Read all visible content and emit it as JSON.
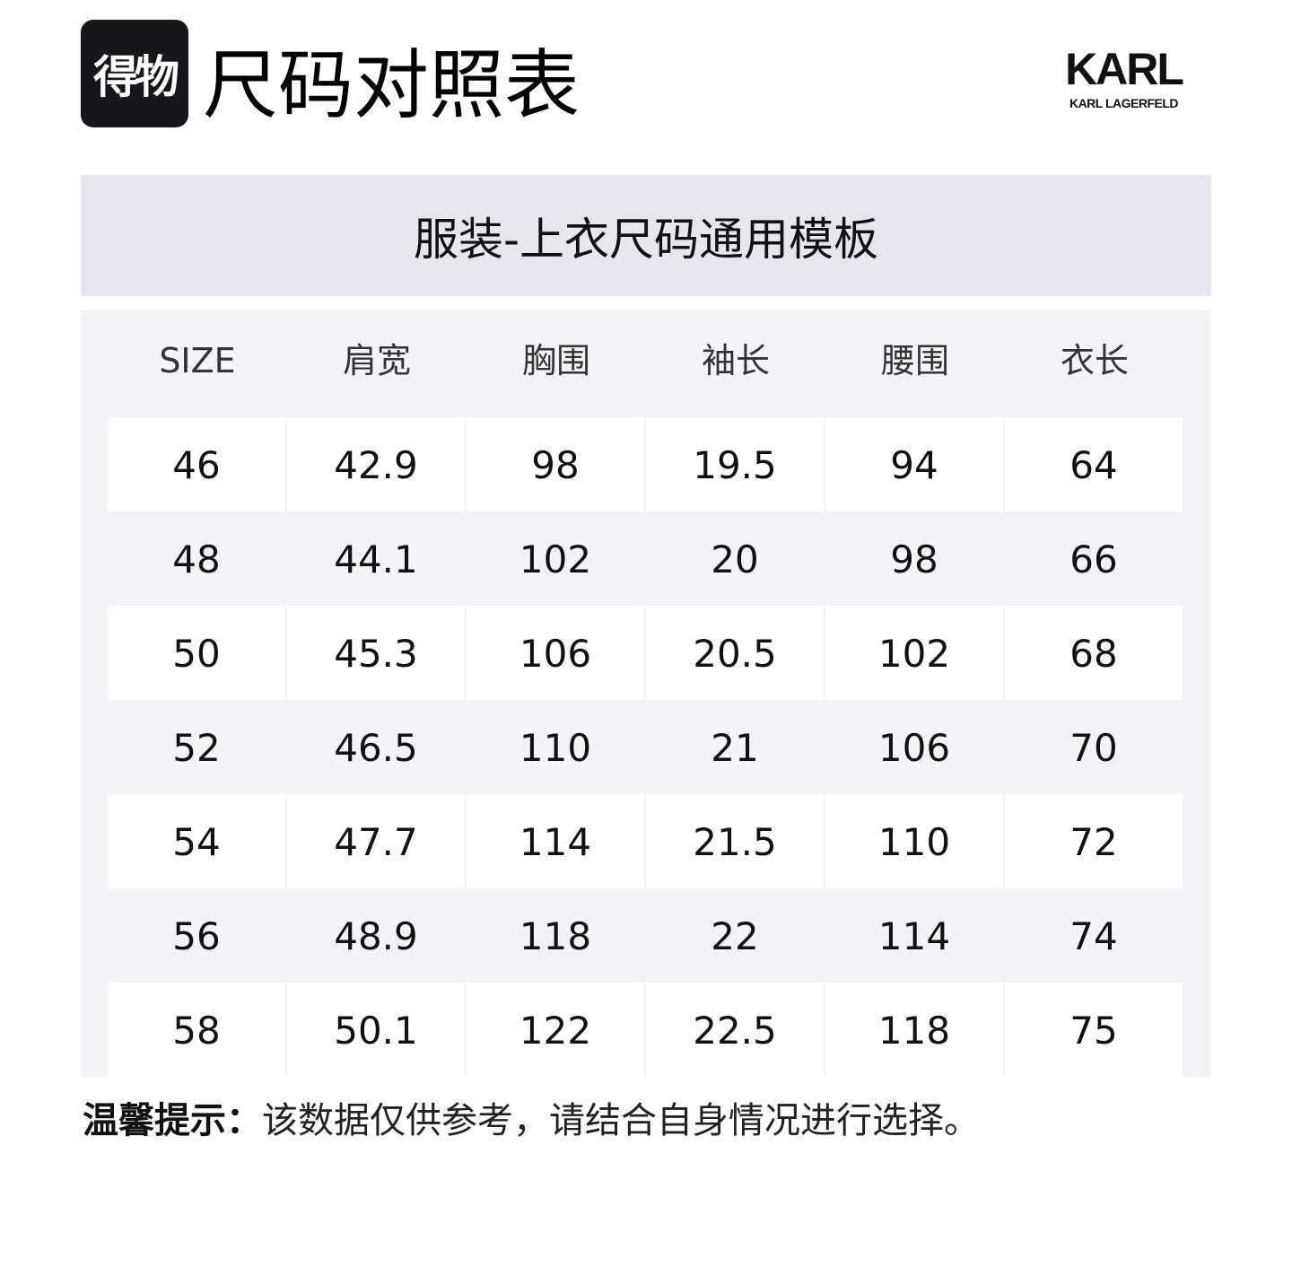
{
  "header": {
    "logo_text": "得物",
    "title": "尺码对照表",
    "brand_logo": "KARL",
    "brand_sub": "KARL LAGERFELD"
  },
  "band_title": "服装-上衣尺码通用模板",
  "table": {
    "columns": [
      "SIZE",
      "肩宽",
      "胸围",
      "袖长",
      "腰围",
      "衣长"
    ],
    "rows": [
      [
        "46",
        "42.9",
        "98",
        "19.5",
        "94",
        "64"
      ],
      [
        "48",
        "44.1",
        "102",
        "20",
        "98",
        "66"
      ],
      [
        "50",
        "45.3",
        "106",
        "20.5",
        "102",
        "68"
      ],
      [
        "52",
        "46.5",
        "110",
        "21",
        "106",
        "70"
      ],
      [
        "54",
        "47.7",
        "114",
        "21.5",
        "110",
        "72"
      ],
      [
        "56",
        "48.9",
        "118",
        "22",
        "114",
        "74"
      ],
      [
        "58",
        "50.1",
        "122",
        "22.5",
        "118",
        "75"
      ]
    ]
  },
  "tip": {
    "label": "温馨提示：",
    "text": "该数据仅供参考，请结合自身情况进行选择。"
  }
}
